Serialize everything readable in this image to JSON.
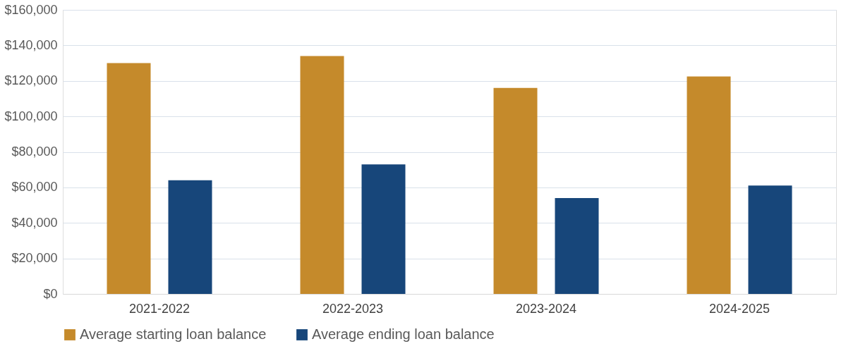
{
  "chart_data": {
    "type": "bar",
    "categories": [
      "2021-2022",
      "2022-2023",
      "2023-2024",
      "2024-2025"
    ],
    "series": [
      {
        "name": "Average starting loan balance",
        "color": "#c58a2b",
        "values": [
          130000,
          134000,
          116000,
          122500
        ]
      },
      {
        "name": "Average ending loan balance",
        "color": "#17467a",
        "values": [
          64000,
          73000,
          54000,
          61000
        ]
      }
    ],
    "ylim": [
      0,
      160000
    ],
    "yticks": [
      {
        "value": 0,
        "label": "$0"
      },
      {
        "value": 20000,
        "label": "$20,000"
      },
      {
        "value": 40000,
        "label": "$40,000"
      },
      {
        "value": 60000,
        "label": "$60,000"
      },
      {
        "value": 80000,
        "label": "$80,000"
      },
      {
        "value": 100000,
        "label": "$100,000"
      },
      {
        "value": 120000,
        "label": "$120,000"
      },
      {
        "value": 140000,
        "label": "$140,000"
      },
      {
        "value": 160000,
        "label": "$160,000"
      }
    ],
    "grid": "y",
    "legend": "bottom"
  }
}
